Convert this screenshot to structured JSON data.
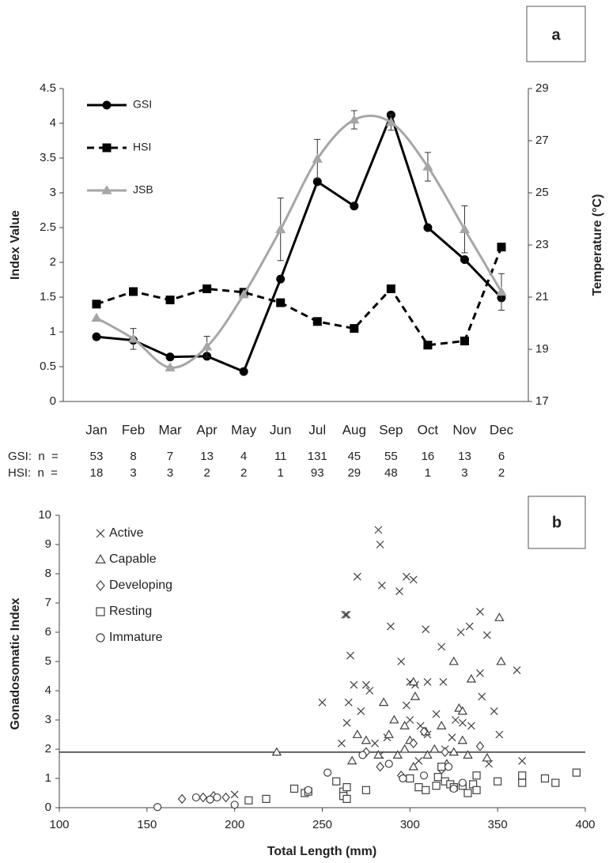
{
  "chart_data": [
    {
      "type": "line",
      "panel_label": "a",
      "ylabel": "Index Value",
      "y2label": "Temperature (°C)",
      "categories": [
        "Jan",
        "Feb",
        "Mar",
        "Apr",
        "May",
        "Jun",
        "Jul",
        "Aug",
        "Sep",
        "Oct",
        "Nov",
        "Dec"
      ],
      "ylim": [
        0,
        4.5
      ],
      "yticks": [
        0,
        0.5,
        1,
        1.5,
        2,
        2.5,
        3,
        3.5,
        4,
        4.5
      ],
      "y2lim": [
        17,
        29
      ],
      "y2ticks": [
        17,
        19,
        21,
        23,
        25,
        27,
        29
      ],
      "series": [
        {
          "name": "GSI",
          "color": "#000000",
          "marker": "circle",
          "dash": false,
          "smooth": false,
          "values": [
            0.93,
            0.88,
            0.64,
            0.65,
            0.43,
            1.76,
            3.16,
            2.81,
            4.12,
            2.5,
            2.04,
            1.49
          ]
        },
        {
          "name": "HSI",
          "color": "#000000",
          "marker": "square",
          "dash": true,
          "smooth": false,
          "values": [
            1.4,
            1.58,
            1.46,
            1.62,
            1.57,
            1.42,
            1.15,
            1.05,
            1.62,
            0.81,
            0.87,
            2.22
          ]
        },
        {
          "name": "JSB",
          "color": "#a6a6a6",
          "marker": "triangle",
          "dash": false,
          "smooth": true,
          "axis": "y2",
          "values": [
            20.2,
            19.4,
            18.3,
            19.1,
            21.1,
            23.6,
            26.3,
            27.8,
            27.7,
            26.0,
            23.6,
            21.2
          ],
          "errors": [
            null,
            0.4,
            null,
            0.4,
            null,
            1.2,
            0.75,
            0.35,
            0.3,
            0.55,
            0.9,
            0.7
          ]
        }
      ],
      "sample_sizes": [
        {
          "label": "GSI:  n  =",
          "values": [
            53,
            8,
            7,
            13,
            4,
            11,
            131,
            45,
            55,
            16,
            13,
            6
          ]
        },
        {
          "label": "HSI:  n  =",
          "values": [
            18,
            3,
            3,
            2,
            2,
            1,
            93,
            29,
            48,
            1,
            3,
            2
          ]
        }
      ]
    },
    {
      "type": "scatter",
      "panel_label": "b",
      "xlabel": "Total Length (mm)",
      "ylabel": "Gonadosomatic Index",
      "xlim": [
        100,
        400
      ],
      "xticks": [
        100,
        150,
        200,
        250,
        300,
        350,
        400
      ],
      "ylim": [
        0,
        10
      ],
      "yticks": [
        0,
        1,
        2,
        3,
        4,
        5,
        6,
        7,
        8,
        9,
        10
      ],
      "threshold": 1.9,
      "series": [
        {
          "name": "Active",
          "marker": "cross",
          "color": "#404040",
          "x": [
            282,
            283,
            284,
            270,
            298,
            302,
            294,
            289,
            263,
            264,
            309,
            329,
            334,
            340,
            344,
            318,
            361,
            266,
            250,
            265,
            268,
            275,
            277,
            295,
            300,
            303,
            310,
            319,
            340,
            341,
            348,
            351,
            264,
            272,
            261,
            287,
            298,
            300,
            306,
            315,
            326,
            330,
            335,
            320,
            283,
            345,
            364,
            305,
            200,
            280,
            310,
            324
          ],
          "values": [
            9.5,
            9.0,
            7.6,
            7.9,
            7.9,
            7.8,
            7.4,
            6.2,
            6.6,
            6.6,
            6.1,
            6.0,
            6.2,
            6.7,
            5.9,
            5.5,
            4.7,
            5.2,
            3.6,
            3.6,
            4.2,
            4.2,
            4.0,
            5.0,
            4.3,
            4.2,
            4.3,
            4.3,
            4.6,
            3.8,
            3.3,
            2.5,
            2.9,
            3.3,
            2.2,
            2.4,
            3.5,
            3.0,
            2.8,
            3.2,
            3.0,
            2.9,
            2.8,
            2.0,
            1.8,
            1.5,
            1.6,
            1.6,
            0.45,
            2.2,
            2.5,
            2.4
          ]
        },
        {
          "name": "Capable",
          "marker": "triangle",
          "color": "#404040",
          "x": [
            224,
            351,
            325,
            352,
            335,
            285,
            302,
            303,
            291,
            328,
            297,
            300,
            309,
            318,
            330,
            267,
            282,
            293,
            302,
            321,
            330,
            333,
            344,
            288,
            310,
            270,
            314,
            297,
            275,
            325
          ],
          "values": [
            1.9,
            6.5,
            5.0,
            5.0,
            4.4,
            3.6,
            4.3,
            3.8,
            3.0,
            3.4,
            2.8,
            2.3,
            2.6,
            2.8,
            3.3,
            1.6,
            1.8,
            1.8,
            1.4,
            1.5,
            2.3,
            1.8,
            1.7,
            2.5,
            1.8,
            2.5,
            2.0,
            2.0,
            2.3,
            1.9
          ]
        },
        {
          "name": "Developing",
          "marker": "diamond",
          "color": "#404040",
          "x": [
            170,
            182,
            188,
            195,
            283,
            295,
            302,
            318,
            320,
            340,
            275,
            308
          ],
          "values": [
            0.3,
            0.35,
            0.4,
            0.35,
            1.4,
            1.1,
            2.2,
            1.3,
            1.9,
            2.1,
            1.9,
            2.6
          ]
        },
        {
          "name": "Resting",
          "marker": "square",
          "color": "#404040",
          "x": [
            208,
            218,
            234,
            240,
            242,
            258,
            262,
            262,
            264,
            264,
            275,
            300,
            305,
            309,
            316,
            318,
            320,
            323,
            325,
            330,
            333,
            336,
            338,
            338,
            350,
            364,
            364,
            377,
            383,
            395,
            315
          ],
          "values": [
            0.25,
            0.3,
            0.65,
            0.5,
            0.55,
            0.9,
            0.55,
            0.4,
            0.3,
            0.7,
            0.6,
            1.0,
            0.7,
            0.6,
            1.05,
            1.4,
            0.9,
            0.8,
            0.7,
            0.75,
            0.5,
            0.8,
            0.6,
            1.1,
            0.9,
            0.85,
            1.1,
            1.0,
            0.85,
            1.2,
            0.75
          ]
        },
        {
          "name": "Immature",
          "marker": "circle",
          "color": "#404040",
          "x": [
            156,
            178,
            186,
            190,
            200,
            242,
            253,
            273,
            288,
            296,
            322,
            325,
            330,
            308
          ],
          "values": [
            0.02,
            0.35,
            0.28,
            0.35,
            0.1,
            0.6,
            1.2,
            1.8,
            1.5,
            1.0,
            1.4,
            0.65,
            0.85,
            1.1
          ]
        }
      ]
    }
  ]
}
